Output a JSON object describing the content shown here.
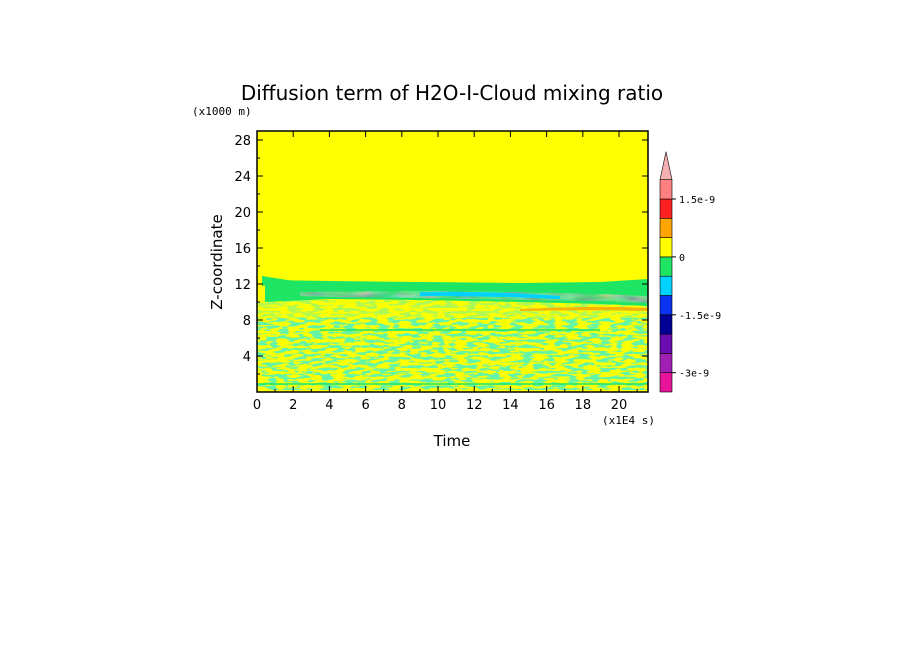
{
  "chart_data": {
    "type": "heatmap",
    "title": "Diffusion term of H2O-I-Cloud mixing ratio",
    "xlabel": "Time",
    "ylabel": "Z-coordinate",
    "x_unit": "(x1E4 s)",
    "y_unit": "(x1000 m)",
    "xlim": [
      0,
      21.6
    ],
    "ylim": [
      0,
      29
    ],
    "x_ticks": [
      "0",
      "2",
      "4",
      "6",
      "8",
      "10",
      "12",
      "14",
      "16",
      "18",
      "20"
    ],
    "x_tick_values": [
      0,
      2,
      4,
      6,
      8,
      10,
      12,
      14,
      16,
      18,
      20
    ],
    "y_ticks": [
      "4",
      "8",
      "12",
      "16",
      "20",
      "24",
      "28"
    ],
    "y_tick_values": [
      4,
      8,
      12,
      16,
      20,
      24,
      28
    ],
    "colorbar": {
      "levels": [
        "-3e-9",
        "-2.5e-9",
        "-2e-9",
        "-1.5e-9",
        "-1e-9",
        "-5e-10",
        "0",
        "5e-10",
        "1e-9",
        "1.5e-9",
        "2e-9"
      ],
      "labels": [
        {
          "text": "1.5e-9",
          "value": 1.5e-09
        },
        {
          "text": "0",
          "value": 0
        },
        {
          "text": "-1.5e-9",
          "value": -1.5e-09
        },
        {
          "text": "-3e-9",
          "value": -3e-09
        }
      ],
      "colors": [
        "#e8149a",
        "#a020b4",
        "#6a0cb0",
        "#000096",
        "#0a32f0",
        "#00d2ff",
        "#1ee664",
        "#ffff00",
        "#ffa500",
        "#ff2020",
        "#ff8080",
        "#f4b0b0"
      ],
      "extend": "max"
    },
    "regions": [
      {
        "z_range": [
          13.5,
          29
        ],
        "value_class": "near zero (yellow)"
      },
      {
        "z_range": [
          9.5,
          13.5
        ],
        "value_class": "negative band (green/cyan)",
        "min_class": "cyan"
      },
      {
        "z_range": [
          0.5,
          9.5
        ],
        "value_class": "mixed near zero (yellow/green speckle)"
      }
    ]
  }
}
